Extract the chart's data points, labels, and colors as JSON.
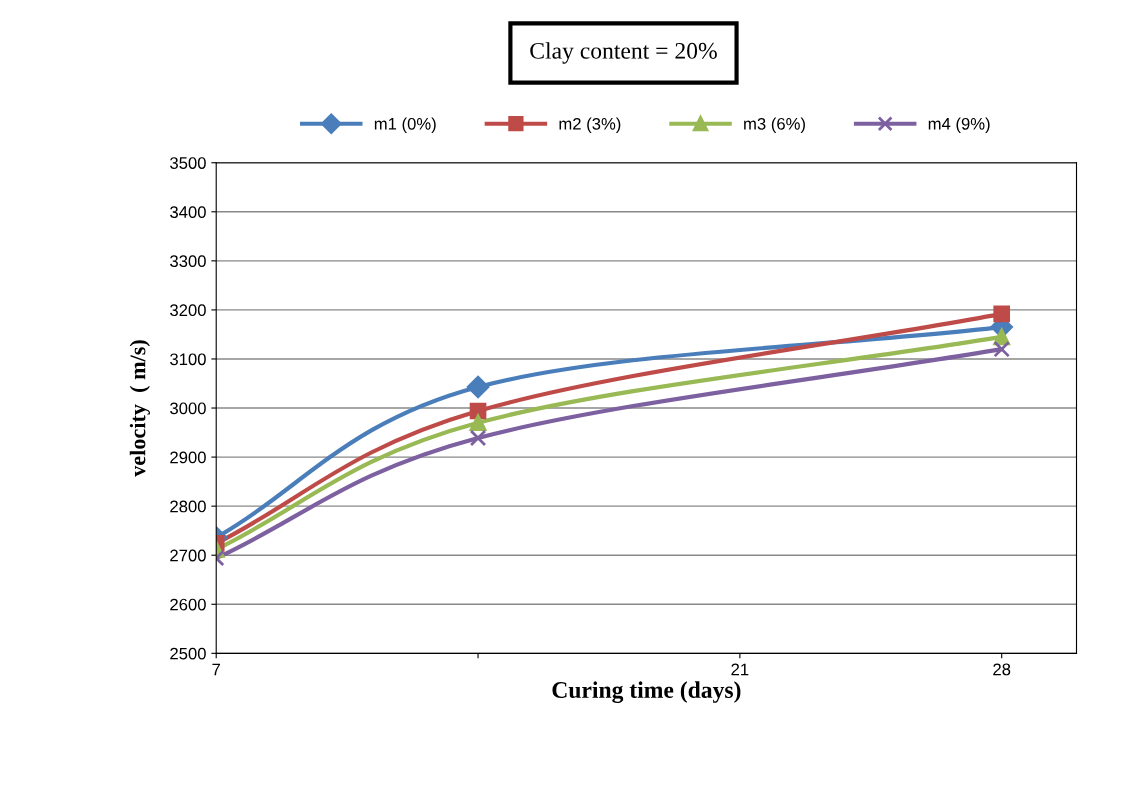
{
  "chart_data": {
    "type": "line",
    "title": "Clay content = 20%",
    "xlabel": "Curing time (days)",
    "ylabel": "velocity  ( m/s)",
    "x": [
      7,
      14,
      28
    ],
    "series": [
      {
        "name": "m1 (0%)",
        "color": "#4a7ebb",
        "marker": "diamond",
        "values": [
          2736,
          3043,
          3165
        ]
      },
      {
        "name": "m2 (3%)",
        "color": "#be4b48",
        "marker": "square",
        "values": [
          2724,
          2994,
          3192
        ]
      },
      {
        "name": "m3 (6%)",
        "color": "#98b954",
        "marker": "triangle",
        "values": [
          2712,
          2970,
          3145
        ]
      },
      {
        "name": "m4 (9%)",
        "color": "#7d60a0",
        "marker": "cross",
        "values": [
          2694,
          2939,
          3120
        ]
      }
    ],
    "xlim": [
      7,
      30
    ],
    "xticks": [
      7,
      {
        "value": 14,
        "label": null
      },
      21,
      28
    ],
    "ylim": [
      2500,
      3500
    ],
    "yticks": [
      2500,
      2600,
      2700,
      2800,
      2900,
      3000,
      3100,
      3200,
      3300,
      3400,
      3500
    ],
    "grid": "y",
    "legend": "top",
    "line_style": "solid"
  }
}
